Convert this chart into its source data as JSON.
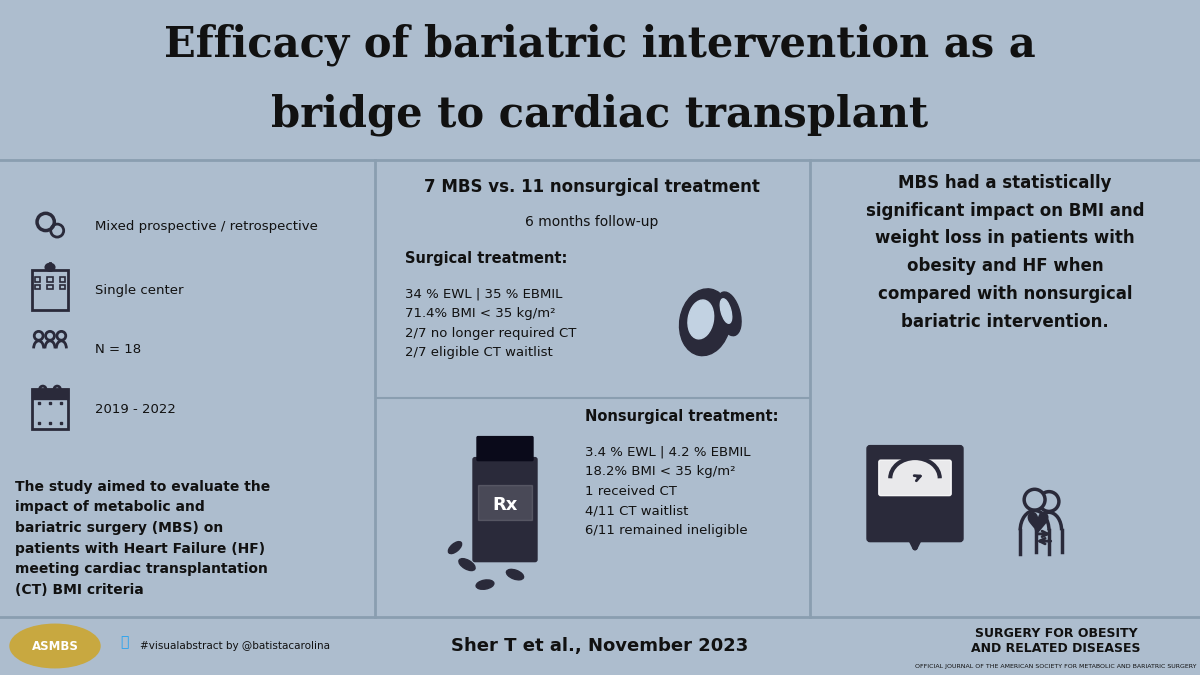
{
  "title_line1": "Efficacy of bariatric intervention as a",
  "title_line2": "bridge to cardiac transplant",
  "bg_color_header": "#b8c9da",
  "bg_color_main": "#adbdce",
  "bg_color_middle": "#c2d2e2",
  "bg_color_right": "#adbdce",
  "text_color": "#111111",
  "footer_center": "Sher T et al., November 2023",
  "footer_twitter": "#visualabstract by @batistacarolina",
  "footer_right_line1": "SURGERY FOR OBESITY",
  "footer_right_line2": "AND RELATED DISEASES",
  "footer_right_sub": "OFFICIAL JOURNAL OF THE AMERICAN SOCIETY FOR METABOLIC AND BARIATRIC SURGERY",
  "left_study_text": "The study aimed to evaluate the\nimpact of metabolic and\nbariatric surgery (MBS) on\npatients with Heart Failure (HF)\nmeeting cardiac transplantation\n(CT) BMI criteria",
  "middle_header": "7 MBS vs. 11 nonsurgical treatment",
  "middle_subheader": "6 months follow-up",
  "surgical_label": "Surgical treatment:",
  "surgical_stats": "34 % EWL | 35 % EBMIL\n71.4% BMI < 35 kg/m²\n2/7 no longer required CT\n2/7 eligible CT waitlist",
  "nonsurgical_label": "Nonsurgical treatment:",
  "nonsurgical_stats": "3.4 % EWL | 4.2 % EBMIL\n18.2% BMI < 35 kg/m²\n1 received CT\n4/11 CT waitlist\n6/11 remained ineligible",
  "right_text": "MBS had a statistically\nsignificant impact on BMI and\nweight loss in patients with\nobesity and HF when\ncompared with nonsurgical\nbariatric intervention.",
  "icon_color": "#2a2a3a",
  "icon_stroke": "#1a1a2e"
}
